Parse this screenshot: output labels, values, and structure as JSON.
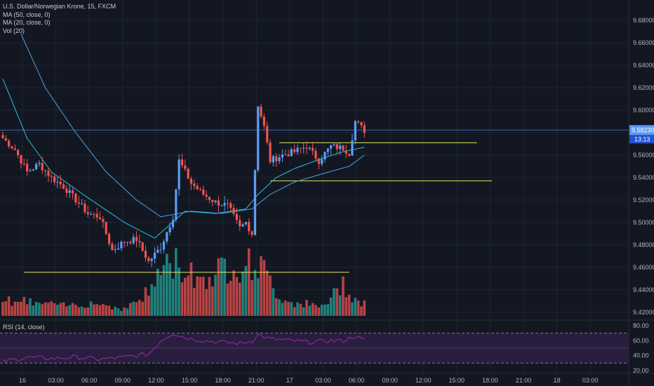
{
  "legend": {
    "symbol": "U.S. Dollar/Norwegian Krone, 15, FXCM",
    "ma50": "MA (50, close, 0)",
    "ma20": "MA (20, close, 0)",
    "vol": "Vol (20)",
    "rsi": "RSI (14, close)"
  },
  "price_label": {
    "value": "9.58230",
    "countdown": "13:13"
  },
  "colors": {
    "background": "#131722",
    "grid": "#1f2433",
    "up": "#5b9cf6",
    "down": "#ef5350",
    "vol_up": "#26a69a",
    "vol_down": "#ef5350",
    "ma_fast": "#26c6da",
    "ma_slow": "#4aa3e8",
    "hline": "#e6e65a",
    "rsi": "#9c27b0",
    "rsi_band": "#2a1e3f",
    "price_line": "#5b9cf6"
  },
  "chart_data": {
    "type": "candlestick",
    "y_ticks": [
      "9.68000",
      "9.66000",
      "9.64000",
      "9.62000",
      "9.60000",
      "9.58000",
      "9.56000",
      "9.54000",
      "9.52000",
      "9.50000",
      "9.48000",
      "9.46000",
      "9.44000",
      "9.42000"
    ],
    "x_ticks": [
      "16",
      "03:00",
      "06:00",
      "09:00",
      "12:00",
      "15:00",
      "18:00",
      "21:00",
      "17",
      "03:00",
      "06:00",
      "09:00",
      "12:00",
      "15:00",
      "18:00",
      "21:00",
      "18",
      "03:00"
    ],
    "rsi_ticks": [
      "80.00",
      "60.00",
      "40.00",
      "20.00"
    ],
    "ylim": [
      9.413,
      9.692
    ],
    "bar_interval": "15",
    "horizontal_lines": [
      {
        "price": 9.4555,
        "from_bar": 7,
        "to_bar": 114
      },
      {
        "price": 9.571,
        "from_bar": 91,
        "to_bar": 156
      },
      {
        "price": 9.537,
        "from_bar": 88,
        "to_bar": 161
      }
    ],
    "ohlc_anchors": [
      [
        0,
        9.575
      ],
      [
        4,
        9.565
      ],
      [
        8,
        9.545
      ],
      [
        12,
        9.552
      ],
      [
        16,
        9.54
      ],
      [
        20,
        9.532
      ],
      [
        24,
        9.52
      ],
      [
        28,
        9.508
      ],
      [
        32,
        9.505
      ],
      [
        36,
        9.475
      ],
      [
        40,
        9.483
      ],
      [
        44,
        9.485
      ],
      [
        48,
        9.465
      ],
      [
        52,
        9.478
      ],
      [
        56,
        9.505
      ],
      [
        58,
        9.555
      ],
      [
        62,
        9.535
      ],
      [
        66,
        9.525
      ],
      [
        70,
        9.518
      ],
      [
        74,
        9.515
      ],
      [
        78,
        9.495
      ],
      [
        80,
        9.5
      ],
      [
        82,
        9.49
      ],
      [
        84,
        9.605
      ],
      [
        86,
        9.585
      ],
      [
        88,
        9.555
      ],
      [
        92,
        9.56
      ],
      [
        96,
        9.563
      ],
      [
        100,
        9.568
      ],
      [
        104,
        9.555
      ],
      [
        108,
        9.568
      ],
      [
        112,
        9.566
      ],
      [
        114,
        9.562
      ],
      [
        116,
        9.59
      ],
      [
        119,
        9.582
      ]
    ],
    "ma_fast_anchors": [
      [
        0,
        9.628
      ],
      [
        8,
        9.575
      ],
      [
        16,
        9.545
      ],
      [
        28,
        9.522
      ],
      [
        40,
        9.5
      ],
      [
        50,
        9.486
      ],
      [
        60,
        9.51
      ],
      [
        70,
        9.508
      ],
      [
        80,
        9.512
      ],
      [
        84,
        9.525
      ],
      [
        90,
        9.54
      ],
      [
        96,
        9.548
      ],
      [
        104,
        9.556
      ],
      [
        112,
        9.563
      ],
      [
        119,
        9.567
      ]
    ],
    "ma_slow_anchors": [
      [
        6,
        9.668
      ],
      [
        14,
        9.62
      ],
      [
        24,
        9.58
      ],
      [
        34,
        9.545
      ],
      [
        44,
        9.52
      ],
      [
        52,
        9.505
      ],
      [
        62,
        9.51
      ],
      [
        72,
        9.508
      ],
      [
        82,
        9.512
      ],
      [
        88,
        9.525
      ],
      [
        96,
        9.536
      ],
      [
        106,
        9.544
      ],
      [
        114,
        9.55
      ],
      [
        119,
        9.56
      ]
    ],
    "volume_anchors": [
      [
        0,
        25
      ],
      [
        10,
        20
      ],
      [
        20,
        15
      ],
      [
        30,
        20
      ],
      [
        40,
        10
      ],
      [
        48,
        35
      ],
      [
        52,
        70
      ],
      [
        56,
        80
      ],
      [
        60,
        70
      ],
      [
        66,
        55
      ],
      [
        72,
        70
      ],
      [
        76,
        80
      ],
      [
        80,
        75
      ],
      [
        84,
        80
      ],
      [
        88,
        50
      ],
      [
        92,
        25
      ],
      [
        96,
        20
      ],
      [
        100,
        18
      ],
      [
        104,
        12
      ],
      [
        108,
        25
      ],
      [
        112,
        50
      ],
      [
        116,
        25
      ],
      [
        119,
        20
      ]
    ],
    "rsi_anchors": [
      [
        0,
        32
      ],
      [
        8,
        38
      ],
      [
        16,
        36
      ],
      [
        24,
        38
      ],
      [
        32,
        35
      ],
      [
        40,
        38
      ],
      [
        48,
        42
      ],
      [
        52,
        60
      ],
      [
        56,
        70
      ],
      [
        60,
        64
      ],
      [
        66,
        60
      ],
      [
        72,
        58
      ],
      [
        78,
        56
      ],
      [
        82,
        60
      ],
      [
        84,
        68
      ],
      [
        88,
        62
      ],
      [
        92,
        61
      ],
      [
        100,
        58
      ],
      [
        108,
        60
      ],
      [
        112,
        60
      ],
      [
        116,
        66
      ],
      [
        119,
        60
      ]
    ]
  }
}
